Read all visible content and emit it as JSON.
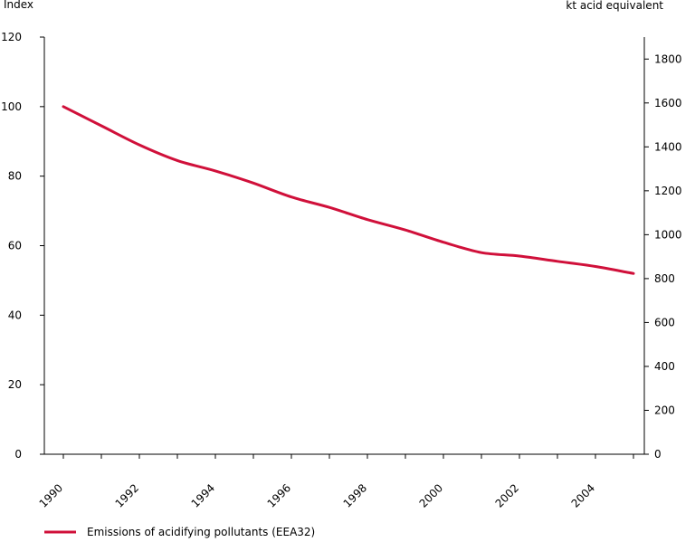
{
  "chart_data": {
    "type": "line",
    "left_axis_title": "Index",
    "right_axis_title": "kt acid equivalent",
    "left_ylim": [
      0,
      120
    ],
    "left_ticks": [
      0,
      20,
      40,
      60,
      80,
      100,
      120
    ],
    "right_ylim": [
      0,
      1900
    ],
    "right_ticks": [
      0,
      200,
      400,
      600,
      800,
      1000,
      1200,
      1400,
      1600,
      1800
    ],
    "x_tick_labels": [
      "1990",
      "1992",
      "1994",
      "1996",
      "1998",
      "2000",
      "2002",
      "2004"
    ],
    "x_range": [
      1990,
      2005
    ],
    "grid": false,
    "legend_position": "bottom-left",
    "series": [
      {
        "name": "Emissions of acidifying pollutants  (EEA32)",
        "axis": "left",
        "color": "#d0103a",
        "x": [
          1990,
          1991,
          1992,
          1993,
          1994,
          1995,
          1996,
          1997,
          1998,
          1999,
          2000,
          2001,
          2002,
          2003,
          2004,
          2005
        ],
        "values": [
          100,
          94.5,
          89,
          84.5,
          81.5,
          78,
          74,
          71,
          67.5,
          64.5,
          61,
          58,
          57,
          55.5,
          54,
          52
        ]
      }
    ]
  }
}
